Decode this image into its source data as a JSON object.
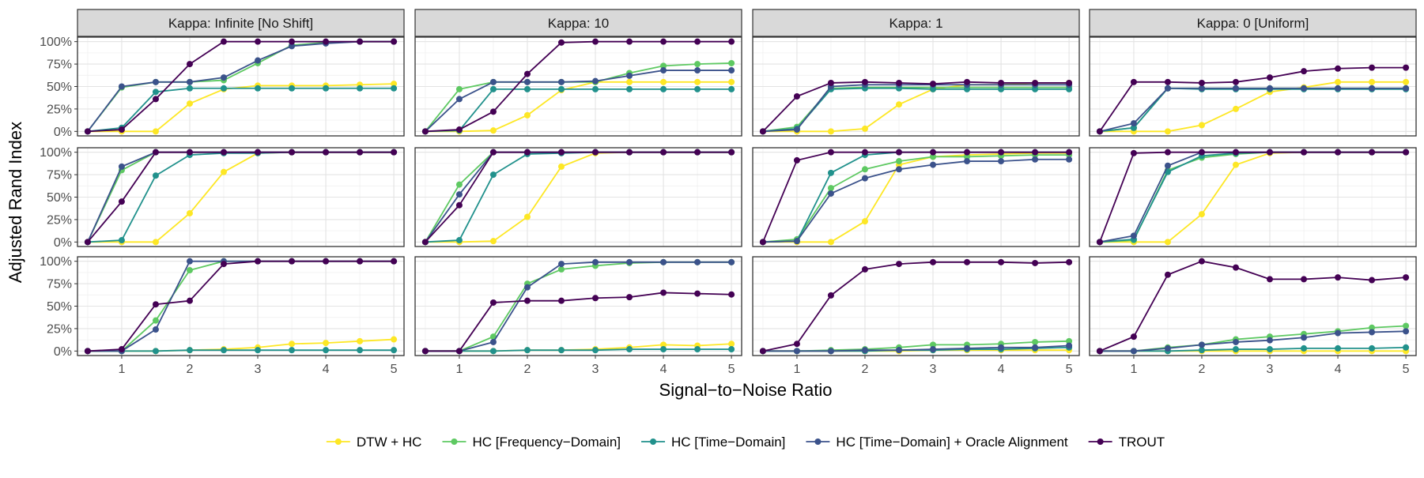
{
  "colors": {
    "DTW + HC": "#FDE725",
    "HC [Frequency-Domain]": "#5EC962",
    "HC [Time-Domain]": "#21918C",
    "HC [Time-Domain] + Oracle Alignment": "#3B528B",
    "TROUT": "#440154"
  },
  "chart_data": {
    "type": "line",
    "facets": {
      "columns": [
        "Kappa: Infinite [No Shift]",
        "Kappa: 10",
        "Kappa: 1",
        "Kappa: 0 [Uniform]"
      ],
      "rows": 3
    },
    "xlabel": "Signal−to−Noise Ratio",
    "ylabel": "Adjusted Rand Index",
    "x": [
      0.5,
      1,
      1.5,
      2,
      2.5,
      3,
      3.5,
      4,
      4.5,
      5
    ],
    "x_ticks": [
      1,
      2,
      3,
      4,
      5
    ],
    "x_tick_labels": [
      "1",
      "2",
      "3",
      "4",
      "5"
    ],
    "xlim": [
      0.35,
      5.15
    ],
    "y_ticks": [
      0,
      0.25,
      0.5,
      0.75,
      1.0
    ],
    "y_tick_labels": [
      "0%",
      "25%",
      "50%",
      "75%",
      "100%"
    ],
    "ylim": [
      -0.05,
      1.05
    ],
    "grid": true,
    "legend_position": "bottom",
    "legend": [
      "DTW + HC",
      "HC [Frequency−Domain]",
      "HC [Time−Domain]",
      "HC [Time−Domain] + Oracle Alignment",
      "TROUT"
    ],
    "series_order": [
      "DTW + HC",
      "HC [Frequency-Domain]",
      "HC [Time-Domain]",
      "HC [Time-Domain] + Oracle Alignment",
      "TROUT"
    ],
    "panels": [
      [
        {
          "DTW + HC": [
            0,
            0,
            0,
            0.31,
            0.47,
            0.51,
            0.51,
            0.51,
            0.52,
            0.53
          ],
          "HC [Frequency-Domain]": [
            0,
            0.49,
            0.55,
            0.55,
            0.57,
            0.76,
            0.96,
            0.99,
            1.0,
            1.0
          ],
          "HC [Time-Domain]": [
            0,
            0.04,
            0.44,
            0.48,
            0.48,
            0.48,
            0.48,
            0.48,
            0.48,
            0.48
          ],
          "HC [Time-Domain] + Oracle Alignment": [
            0,
            0.5,
            0.55,
            0.55,
            0.6,
            0.79,
            0.95,
            0.98,
            1.0,
            1.0
          ],
          "TROUT": [
            0,
            0.02,
            0.36,
            0.75,
            1.0,
            1.0,
            1.0,
            1.0,
            1.0,
            1.0
          ]
        },
        {
          "DTW + HC": [
            0,
            0,
            0.01,
            0.18,
            0.46,
            0.55,
            0.55,
            0.55,
            0.55,
            0.55
          ],
          "HC [Frequency-Domain]": [
            0,
            0.47,
            0.55,
            0.55,
            0.55,
            0.55,
            0.65,
            0.73,
            0.75,
            0.76
          ],
          "HC [Time-Domain]": [
            0,
            0.01,
            0.47,
            0.47,
            0.47,
            0.47,
            0.47,
            0.47,
            0.47,
            0.47
          ],
          "HC [Time-Domain] + Oracle Alignment": [
            0,
            0.36,
            0.55,
            0.55,
            0.55,
            0.56,
            0.62,
            0.68,
            0.68,
            0.68
          ],
          "TROUT": [
            0,
            0.02,
            0.22,
            0.64,
            0.99,
            1.0,
            1.0,
            1.0,
            1.0,
            1.0
          ]
        },
        {
          "DTW + HC": [
            0,
            0,
            0,
            0.03,
            0.3,
            0.47,
            0.52,
            0.52,
            0.54,
            0.54
          ],
          "HC [Frequency-Domain]": [
            0,
            0.05,
            0.48,
            0.49,
            0.49,
            0.49,
            0.49,
            0.49,
            0.49,
            0.49
          ],
          "HC [Time-Domain]": [
            0,
            0.03,
            0.47,
            0.48,
            0.48,
            0.47,
            0.47,
            0.47,
            0.47,
            0.47
          ],
          "HC [Time-Domain] + Oracle Alignment": [
            0,
            0.02,
            0.5,
            0.52,
            0.52,
            0.52,
            0.52,
            0.52,
            0.52,
            0.52
          ],
          "TROUT": [
            0,
            0.39,
            0.54,
            0.55,
            0.54,
            0.53,
            0.55,
            0.54,
            0.54,
            0.54
          ]
        },
        {
          "DTW + HC": [
            0,
            0,
            0,
            0.07,
            0.25,
            0.44,
            0.49,
            0.55,
            0.55,
            0.55
          ],
          "HC [Frequency-Domain]": [
            0,
            0.04,
            0.48,
            0.48,
            0.48,
            0.48,
            0.48,
            0.48,
            0.48,
            0.48
          ],
          "HC [Time-Domain]": [
            0,
            0.04,
            0.48,
            0.47,
            0.47,
            0.47,
            0.47,
            0.47,
            0.47,
            0.47
          ],
          "HC [Time-Domain] + Oracle Alignment": [
            0,
            0.09,
            0.48,
            0.48,
            0.48,
            0.48,
            0.48,
            0.48,
            0.48,
            0.48
          ],
          "TROUT": [
            0,
            0.55,
            0.55,
            0.54,
            0.55,
            0.6,
            0.67,
            0.7,
            0.71,
            0.71
          ]
        }
      ],
      [
        {
          "DTW + HC": [
            0,
            0,
            0,
            0.32,
            0.78,
            0.99,
            1.0,
            1.0,
            1.0,
            1.0
          ],
          "HC [Frequency-Domain]": [
            0,
            0.8,
            1.0,
            1.0,
            1.0,
            1.0,
            1.0,
            1.0,
            1.0,
            1.0
          ],
          "HC [Time-Domain]": [
            0,
            0.02,
            0.74,
            0.97,
            0.99,
            0.99,
            1.0,
            1.0,
            1.0,
            1.0
          ],
          "HC [Time-Domain] + Oracle Alignment": [
            0,
            0.84,
            1.0,
            1.0,
            1.0,
            1.0,
            1.0,
            1.0,
            1.0,
            1.0
          ],
          "TROUT": [
            0,
            0.45,
            1.0,
            1.0,
            1.0,
            1.0,
            1.0,
            1.0,
            1.0,
            1.0
          ]
        },
        {
          "DTW + HC": [
            0,
            0,
            0.01,
            0.28,
            0.84,
            0.99,
            1.0,
            1.0,
            1.0,
            1.0
          ],
          "HC [Frequency-Domain]": [
            0,
            0.64,
            1.0,
            1.0,
            1.0,
            1.0,
            1.0,
            1.0,
            1.0,
            1.0
          ],
          "HC [Time-Domain]": [
            0,
            0.02,
            0.75,
            0.98,
            0.99,
            1.0,
            1.0,
            1.0,
            1.0,
            1.0
          ],
          "HC [Time-Domain] + Oracle Alignment": [
            0,
            0.53,
            1.0,
            1.0,
            1.0,
            1.0,
            1.0,
            1.0,
            1.0,
            1.0
          ],
          "TROUT": [
            0,
            0.41,
            1.0,
            1.0,
            1.0,
            1.0,
            1.0,
            1.0,
            1.0,
            1.0
          ]
        },
        {
          "DTW + HC": [
            0,
            0,
            0,
            0.23,
            0.86,
            0.95,
            0.97,
            0.98,
            0.99,
            0.99
          ],
          "HC [Frequency-Domain]": [
            0,
            0.03,
            0.6,
            0.81,
            0.9,
            0.95,
            0.95,
            0.96,
            0.97,
            0.97
          ],
          "HC [Time-Domain]": [
            0,
            0.01,
            0.77,
            0.97,
            1.0,
            1.0,
            1.0,
            1.0,
            1.0,
            1.0
          ],
          "HC [Time-Domain] + Oracle Alignment": [
            0,
            0.01,
            0.54,
            0.71,
            0.81,
            0.86,
            0.9,
            0.9,
            0.92,
            0.92
          ],
          "TROUT": [
            0,
            0.91,
            1.0,
            1.0,
            1.0,
            1.0,
            1.0,
            1.0,
            1.0,
            1.0
          ]
        },
        {
          "DTW + HC": [
            0,
            0,
            0,
            0.31,
            0.86,
            0.99,
            1.0,
            1.0,
            1.0,
            1.0
          ],
          "HC [Frequency-Domain]": [
            0,
            0.02,
            0.8,
            0.94,
            0.98,
            1.0,
            1.0,
            1.0,
            1.0,
            1.0
          ],
          "HC [Time-Domain]": [
            0,
            0.03,
            0.78,
            0.96,
            0.99,
            1.0,
            1.0,
            1.0,
            1.0,
            1.0
          ],
          "HC [Time-Domain] + Oracle Alignment": [
            0,
            0.07,
            0.85,
            1.0,
            1.0,
            1.0,
            1.0,
            1.0,
            1.0,
            1.0
          ],
          "TROUT": [
            0,
            0.99,
            1.0,
            1.0,
            1.0,
            1.0,
            1.0,
            1.0,
            1.0,
            1.0
          ]
        }
      ],
      [
        {
          "DTW + HC": [
            0,
            0,
            0,
            0.01,
            0.02,
            0.04,
            0.08,
            0.09,
            0.11,
            0.13
          ],
          "HC [Frequency-Domain]": [
            0,
            0,
            0.34,
            0.9,
            1.0,
            1.0,
            1.0,
            1.0,
            1.0,
            1.0
          ],
          "HC [Time-Domain]": [
            0,
            0,
            0,
            0.01,
            0.01,
            0.01,
            0.01,
            0.01,
            0.01,
            0.01
          ],
          "HC [Time-Domain] + Oracle Alignment": [
            0,
            0,
            0.24,
            1.0,
            1.0,
            1.0,
            1.0,
            1.0,
            1.0,
            1.0
          ],
          "TROUT": [
            0,
            0.02,
            0.52,
            0.56,
            0.97,
            1.0,
            1.0,
            1.0,
            1.0,
            1.0
          ]
        },
        {
          "DTW + HC": [
            0,
            0,
            0,
            0.01,
            0.01,
            0.02,
            0.04,
            0.07,
            0.06,
            0.08
          ],
          "HC [Frequency-Domain]": [
            0,
            0,
            0.16,
            0.75,
            0.91,
            0.95,
            0.98,
            0.99,
            0.99,
            0.99
          ],
          "HC [Time-Domain]": [
            0,
            0,
            0,
            0.01,
            0.01,
            0.01,
            0.02,
            0.02,
            0.02,
            0.02
          ],
          "HC [Time-Domain] + Oracle Alignment": [
            0,
            0,
            0.1,
            0.71,
            0.97,
            0.99,
            0.99,
            0.99,
            0.99,
            0.99
          ],
          "TROUT": [
            0,
            0,
            0.54,
            0.56,
            0.56,
            0.59,
            0.6,
            0.65,
            0.64,
            0.63
          ]
        },
        {
          "DTW + HC": [
            0,
            0,
            0,
            0,
            0,
            0.01,
            0.01,
            0.01,
            0.01,
            0.01
          ],
          "HC [Frequency-Domain]": [
            0,
            0,
            0.01,
            0.02,
            0.04,
            0.07,
            0.07,
            0.08,
            0.1,
            0.11
          ],
          "HC [Time-Domain]": [
            0,
            0,
            0,
            0,
            0.01,
            0.01,
            0.02,
            0.02,
            0.03,
            0.04
          ],
          "HC [Time-Domain] + Oracle Alignment": [
            0,
            0,
            0,
            0.01,
            0.01,
            0.02,
            0.03,
            0.04,
            0.04,
            0.06
          ],
          "TROUT": [
            0,
            0.08,
            0.62,
            0.91,
            0.97,
            0.99,
            0.99,
            0.99,
            0.98,
            0.99
          ]
        },
        {
          "DTW + HC": [
            0,
            0,
            0,
            0,
            0,
            0,
            0,
            0,
            0,
            0
          ],
          "HC [Frequency-Domain]": [
            0,
            0,
            0.04,
            0.07,
            0.13,
            0.16,
            0.19,
            0.22,
            0.26,
            0.28
          ],
          "HC [Time-Domain]": [
            0,
            0,
            0,
            0.01,
            0.02,
            0.02,
            0.03,
            0.03,
            0.03,
            0.04
          ],
          "HC [Time-Domain] + Oracle Alignment": [
            0,
            0,
            0.03,
            0.07,
            0.1,
            0.12,
            0.15,
            0.2,
            0.21,
            0.22
          ],
          "TROUT": [
            0,
            0.16,
            0.85,
            1.0,
            0.93,
            0.8,
            0.8,
            0.82,
            0.79,
            0.82
          ]
        }
      ]
    ]
  }
}
